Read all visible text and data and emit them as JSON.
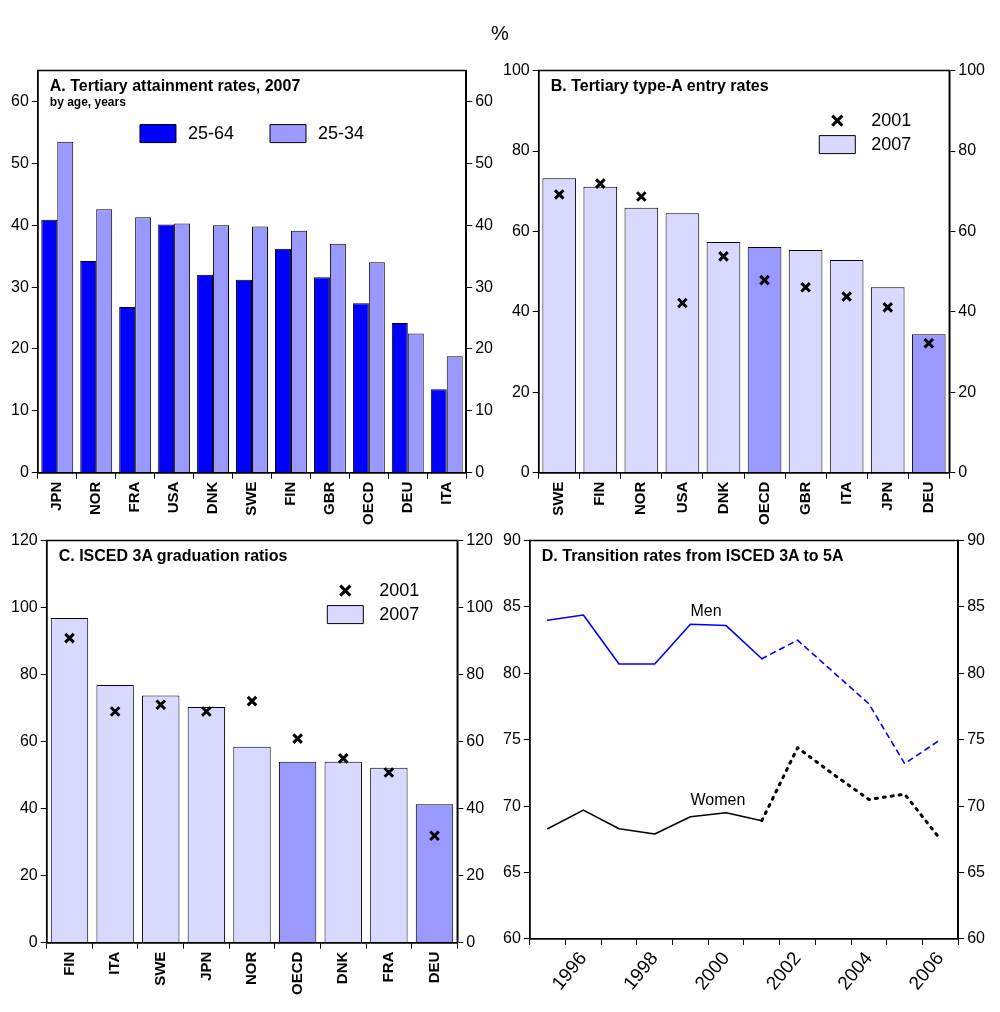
{
  "chart_data": [
    {
      "type": "bar",
      "title": "A. Tertiary attainment rates, 2007",
      "subtitle": "by age, years",
      "annotations": [
        "%"
      ],
      "categories": [
        "JPN",
        "NOR",
        "FRA",
        "USA",
        "DNK",
        "SWE",
        "FIN",
        "GBR",
        "OECD",
        "DEU",
        "ITA"
      ],
      "series": [
        {
          "name": "25-64",
          "color": "#0000ff",
          "values": [
            40.9,
            34.2,
            26.8,
            40.1,
            32.0,
            31.2,
            36.2,
            31.6,
            27.4,
            24.2,
            13.5
          ]
        },
        {
          "name": "25-34",
          "color": "#9999ff",
          "values": [
            53.5,
            42.6,
            41.3,
            40.3,
            40.0,
            39.8,
            39.1,
            37.0,
            34.0,
            22.5,
            18.8
          ]
        }
      ],
      "ylim": [
        0,
        65
      ],
      "yticks": [
        0,
        10,
        20,
        30,
        40,
        50,
        60
      ],
      "y2lim": [
        0,
        65
      ],
      "y2ticks": [
        0,
        10,
        20,
        30,
        40,
        50,
        60
      ],
      "legend": "top"
    },
    {
      "type": "bar",
      "title": "B. Tertiary type-A entry rates",
      "categories": [
        "SWE",
        "FIN",
        "NOR",
        "USA",
        "DNK",
        "OECD",
        "GBR",
        "ITA",
        "JPN",
        "DEU"
      ],
      "series": [
        {
          "name": "2001",
          "type": "scatter",
          "color": "#000000",
          "x": [
            "SWE",
            "FIN",
            "NOR",
            "USA",
            "DNK",
            "OECD",
            "GBR",
            "ITA",
            "JPN",
            "DEU"
          ],
          "values": [
            69.2,
            71.9,
            68.7,
            42.2,
            53.8,
            47.9,
            46.1,
            43.8,
            41.1,
            32.2
          ]
        },
        {
          "name": "2007",
          "type": "bar",
          "color": "#d9d9ff",
          "colors": [
            "#d9d9ff",
            "#d9d9ff",
            "#d9d9ff",
            "#d9d9ff",
            "#d9d9ff",
            "#9999ff",
            "#d9d9ff",
            "#d9d9ff",
            "#d9d9ff",
            "#9999ff"
          ],
          "values": [
            73.2,
            71.1,
            65.9,
            64.5,
            57.4,
            56.1,
            55.4,
            52.9,
            46.1,
            34.4
          ]
        }
      ],
      "marker": "cross",
      "ylim": [
        0,
        100
      ],
      "yticks": [
        0,
        20,
        40,
        60,
        80,
        100
      ],
      "y2lim": [
        0,
        100
      ],
      "y2ticks": [
        0,
        20,
        40,
        60,
        80,
        100
      ],
      "legend": "top right"
    },
    {
      "type": "bar",
      "title": "C. ISCED 3A graduation ratios",
      "categories": [
        "FIN",
        "ITA",
        "SWE",
        "JPN",
        "NOR",
        "OECD",
        "DNK",
        "FRA",
        "DEU"
      ],
      "series": [
        {
          "name": "2001",
          "type": "scatter",
          "color": "#000000",
          "x": [
            "FIN",
            "ITA",
            "SWE",
            "JPN",
            "NOR",
            "OECD",
            "DNK",
            "FRA",
            "DEU"
          ],
          "values": [
            90.9,
            69.0,
            71.0,
            69.0,
            72.1,
            60.9,
            55.0,
            50.8,
            31.9
          ]
        },
        {
          "name": "2007",
          "type": "bar",
          "color": "#d9d9ff",
          "colors": [
            "#d9d9ff",
            "#d9d9ff",
            "#d9d9ff",
            "#d9d9ff",
            "#d9d9ff",
            "#9999ff",
            "#d9d9ff",
            "#d9d9ff",
            "#9999ff"
          ],
          "values": [
            96.9,
            76.9,
            73.8,
            70.3,
            58.5,
            54.0,
            54.0,
            52.2,
            41.3
          ]
        }
      ],
      "marker": "cross",
      "ylim": [
        0,
        120
      ],
      "yticks": [
        0,
        20,
        40,
        60,
        80,
        100,
        120
      ],
      "y2lim": [
        0,
        120
      ],
      "y2ticks": [
        0,
        20,
        40,
        60,
        80,
        100,
        120
      ],
      "legend": "top right"
    },
    {
      "type": "line",
      "title": "D. Transition rates from ISCED 3A to 5A",
      "categories": [
        null,
        "1996",
        null,
        "1998",
        null,
        "2000",
        null,
        "2002",
        null,
        "2004",
        null,
        "2006"
      ],
      "series": [
        {
          "name": "Men",
          "color": "#0000ff",
          "line_style": "solid",
          "values": [
            84.0,
            84.4,
            80.7,
            80.7,
            83.7,
            83.6,
            81.1,
            null,
            null,
            null,
            null,
            null
          ]
        },
        {
          "color": "#0000ff",
          "line_style": "dashed",
          "values": [
            null,
            null,
            null,
            null,
            null,
            null,
            81.1,
            82.5,
            80.1,
            77.7,
            73.2,
            75.0
          ]
        },
        {
          "name": "Women",
          "color": "#000000",
          "line_style": "solid",
          "values": [
            68.3,
            69.7,
            68.3,
            67.9,
            69.2,
            69.5,
            68.9,
            null,
            null,
            null,
            null,
            null
          ]
        },
        {
          "color": "#000000",
          "line_style": "dotted",
          "values": [
            null,
            null,
            null,
            null,
            null,
            null,
            68.9,
            74.4,
            72.4,
            70.5,
            70.9,
            67.5
          ]
        }
      ],
      "ylim": [
        60,
        90
      ],
      "yticks": [
        60,
        65,
        70,
        75,
        80,
        85,
        90
      ],
      "y2lim": [
        60,
        90
      ],
      "y2ticks": [
        60,
        65,
        70,
        75,
        80,
        85,
        90
      ],
      "legend": false
    }
  ]
}
